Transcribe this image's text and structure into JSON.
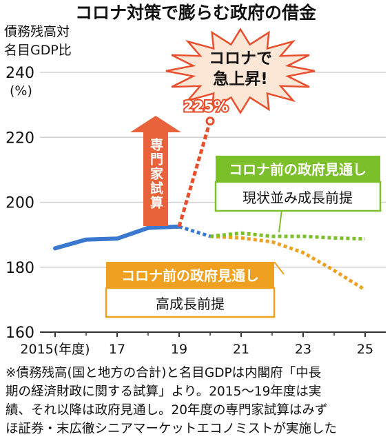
{
  "chart_data": {
    "type": "line",
    "title": "コロナ対策で膨らむ政府の借金",
    "ylabel_lines": [
      "債務残高対",
      "名目GDP比"
    ],
    "y_unit": "(%)",
    "ylim": [
      160,
      240
    ],
    "yticks": [
      160,
      180,
      200,
      220,
      240
    ],
    "xlim": [
      2015,
      2025
    ],
    "xtick_labels": [
      {
        "x": 2015,
        "label": "2015(年度)"
      },
      {
        "x": 2017,
        "label": "17"
      },
      {
        "x": 2019,
        "label": "19"
      },
      {
        "x": 2021,
        "label": "21"
      },
      {
        "x": 2023,
        "label": "23"
      },
      {
        "x": 2025,
        "label": "25"
      }
    ],
    "grid": true,
    "series": [
      {
        "key": "actual",
        "color": "#3a78d0",
        "style": "solid",
        "points": [
          [
            2015,
            185.8
          ],
          [
            2016,
            188.5
          ],
          [
            2017,
            188.8
          ],
          [
            2018,
            192.1
          ],
          [
            2019,
            192.5
          ]
        ]
      },
      {
        "key": "forecast_common",
        "color": "#3a78d0",
        "style": "dotted",
        "points": [
          [
            2019,
            192.5
          ],
          [
            2020,
            189.5
          ]
        ]
      },
      {
        "key": "baseline",
        "color": "#7bbf2a",
        "style": "dotted",
        "points": [
          [
            2020,
            189.5
          ],
          [
            2021,
            190.5
          ],
          [
            2022,
            189.5
          ],
          [
            2023,
            189.5
          ],
          [
            2024,
            189.0
          ],
          [
            2025,
            188.7
          ]
        ]
      },
      {
        "key": "high_growth",
        "color": "#f0a020",
        "style": "dotted",
        "points": [
          [
            2020,
            189.5
          ],
          [
            2021,
            189.0
          ],
          [
            2022,
            187.8
          ],
          [
            2023,
            184.5
          ],
          [
            2024,
            179.0
          ],
          [
            2025,
            173.0
          ]
        ]
      },
      {
        "key": "expert",
        "color": "#e84e2c",
        "style": "dashed",
        "points": [
          [
            2019,
            192.5
          ],
          [
            2020,
            225
          ]
        ]
      }
    ],
    "annotations": {
      "expert_value": "225%",
      "burst_lines": [
        "コロナで",
        "急上昇!"
      ],
      "arrow_label": "専門家試算",
      "green_header": "コロナ前の政府見通し",
      "green_sub": "現状並み成長前提",
      "orange_header": "コロナ前の政府見通し",
      "orange_sub": "高成長前提"
    },
    "colors": {
      "blue": "#3a78d0",
      "green": "#7bbf2a",
      "orange": "#f0a020",
      "red": "#e84e2c",
      "burst_fill": "#fce6d6"
    }
  },
  "footnote": [
    "※債務残高(国と地方の合計)と名目GDPは内閣府「中長",
    "期の経済財政に関する試算」より。2015～19年度は実",
    "績、それ以降は政府見通し。20年度の専門家試算はみず",
    "ほ証券・末広徹シニアマーケットエコノミストが実施した"
  ]
}
